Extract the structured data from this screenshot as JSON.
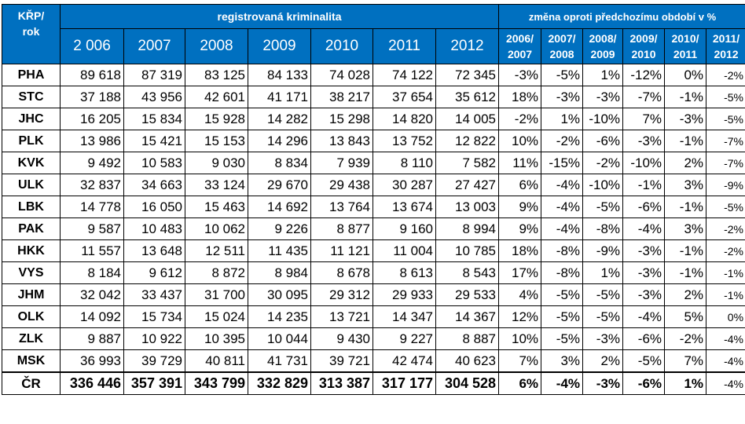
{
  "header": {
    "kr_line1": "KŘP/",
    "kr_line2": "rok",
    "group_registered": "registrovaná kriminalita",
    "group_change": "změna oproti předchozímu období v %",
    "years": [
      "2 006",
      "2007",
      "2008",
      "2009",
      "2010",
      "2011",
      "2012"
    ],
    "periods": [
      [
        "2006/",
        "2007"
      ],
      [
        "2007/",
        "2008"
      ],
      [
        "2008/",
        "2009"
      ],
      [
        "2009/",
        "2010"
      ],
      [
        "2010/",
        "2011"
      ],
      [
        "2011/",
        "2012"
      ]
    ]
  },
  "rows": [
    {
      "label": "PHA",
      "values": [
        "89 618",
        "87 319",
        "83 125",
        "84 133",
        "74 028",
        "74 122",
        "72 345"
      ],
      "changes": [
        "-3%",
        "-5%",
        "1%",
        "-12%",
        "0%",
        "-2%"
      ]
    },
    {
      "label": "STC",
      "values": [
        "37 188",
        "43 956",
        "42 601",
        "41 171",
        "38 217",
        "37 654",
        "35 612"
      ],
      "changes": [
        "18%",
        "-3%",
        "-3%",
        "-7%",
        "-1%",
        "-5%"
      ]
    },
    {
      "label": "JHC",
      "values": [
        "16 205",
        "15 834",
        "15 928",
        "14 282",
        "15 298",
        "14 820",
        "14 005"
      ],
      "changes": [
        "-2%",
        "1%",
        "-10%",
        "7%",
        "-3%",
        "-5%"
      ]
    },
    {
      "label": "PLK",
      "values": [
        "13 986",
        "15 421",
        "15 153",
        "14 296",
        "13 843",
        "13 752",
        "12 822"
      ],
      "changes": [
        "10%",
        "-2%",
        "-6%",
        "-3%",
        "-1%",
        "-7%"
      ]
    },
    {
      "label": "KVK",
      "values": [
        "9 492",
        "10 583",
        "9 030",
        "8 834",
        "7 939",
        "8 110",
        "7 582"
      ],
      "changes": [
        "11%",
        "-15%",
        "-2%",
        "-10%",
        "2%",
        "-7%"
      ]
    },
    {
      "label": "ULK",
      "values": [
        "32 837",
        "34 663",
        "33 124",
        "29 670",
        "29 438",
        "30 287",
        "27 427"
      ],
      "changes": [
        "6%",
        "-4%",
        "-10%",
        "-1%",
        "3%",
        "-9%"
      ]
    },
    {
      "label": "LBK",
      "values": [
        "14 778",
        "16 050",
        "15 463",
        "14 692",
        "13 764",
        "13 674",
        "13 003"
      ],
      "changes": [
        "9%",
        "-4%",
        "-5%",
        "-6%",
        "-1%",
        "-5%"
      ]
    },
    {
      "label": "PAK",
      "values": [
        "9 587",
        "10 483",
        "10 062",
        "9 226",
        "8 877",
        "9 160",
        "8 994"
      ],
      "changes": [
        "9%",
        "-4%",
        "-8%",
        "-4%",
        "3%",
        "-2%"
      ]
    },
    {
      "label": "HKK",
      "values": [
        "11 557",
        "13 648",
        "12 511",
        "11 435",
        "11 121",
        "11 004",
        "10 785"
      ],
      "changes": [
        "18%",
        "-8%",
        "-9%",
        "-3%",
        "-1%",
        "-2%"
      ]
    },
    {
      "label": "VYS",
      "values": [
        "8 184",
        "9 612",
        "8 872",
        "8 984",
        "8 678",
        "8 613",
        "8 543"
      ],
      "changes": [
        "17%",
        "-8%",
        "1%",
        "-3%",
        "-1%",
        "-1%"
      ]
    },
    {
      "label": "JHM",
      "values": [
        "32 042",
        "33 437",
        "31 700",
        "30 095",
        "29 312",
        "29 933",
        "29 533"
      ],
      "changes": [
        "4%",
        "-5%",
        "-5%",
        "-3%",
        "2%",
        "-1%"
      ]
    },
    {
      "label": "OLK",
      "values": [
        "14 092",
        "15 734",
        "15 024",
        "14 235",
        "13 721",
        "14 347",
        "14 367"
      ],
      "changes": [
        "12%",
        "-5%",
        "-5%",
        "-4%",
        "5%",
        "0%"
      ]
    },
    {
      "label": "ZLK",
      "values": [
        "9 887",
        "10 922",
        "10 395",
        "10 044",
        "9 430",
        "9 227",
        "8 887"
      ],
      "changes": [
        "10%",
        "-5%",
        "-3%",
        "-6%",
        "-2%",
        "-4%"
      ]
    },
    {
      "label": "MSK",
      "values": [
        "36 993",
        "39 729",
        "40 811",
        "41 731",
        "39 721",
        "42 474",
        "40 623"
      ],
      "changes": [
        "7%",
        "3%",
        "2%",
        "-5%",
        "7%",
        "-4%"
      ]
    }
  ],
  "total": {
    "label": "ČR",
    "values": [
      "336 446",
      "357 391",
      "343 799",
      "332 829",
      "313 387",
      "317 177",
      "304 528"
    ],
    "changes": [
      "6%",
      "-4%",
      "-3%",
      "-6%",
      "1%",
      "-4%"
    ]
  },
  "colors": {
    "header_bg": "#0070c0",
    "header_text": "#ffffff",
    "border": "#000000"
  }
}
